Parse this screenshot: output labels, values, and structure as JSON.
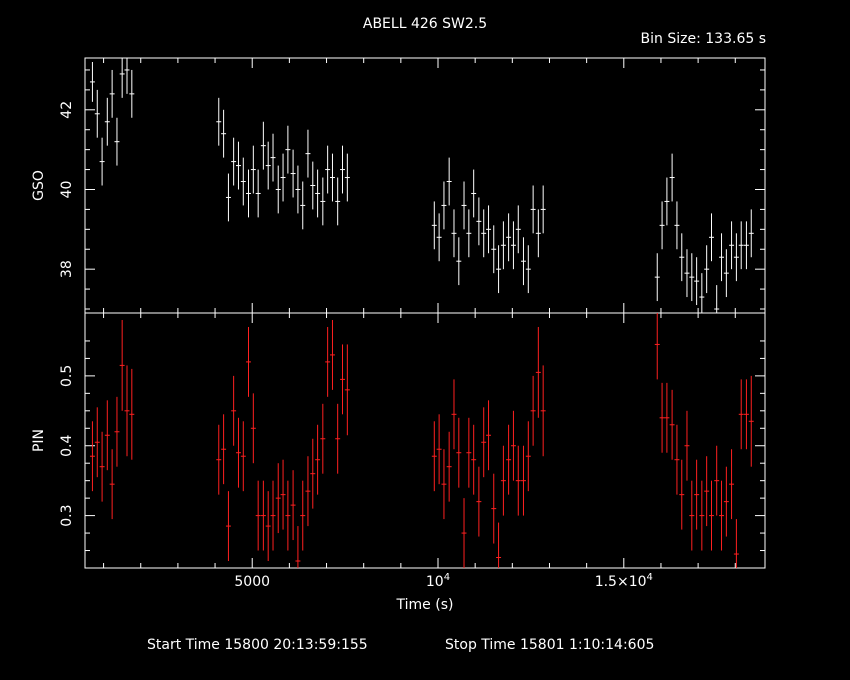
{
  "header": {
    "title": "ABELL 426 SW2.5",
    "bin_size": "Bin Size: 133.65 s"
  },
  "footer": {
    "start_time": "Start Time 15800 20:13:59:155",
    "stop_time": "Stop Time 15801  1:10:14:605"
  },
  "colors": {
    "background": "#000000",
    "axes": "#ffffff",
    "gso": "#ffffff",
    "pin": "#ff2020"
  },
  "chart_data": [
    {
      "type": "scatter",
      "panel": "top",
      "title": "ABELL 426 SW2.5",
      "xlabel": "",
      "ylabel": "GSO",
      "xlim": [
        500,
        18800
      ],
      "ylim": [
        36.9,
        43.3
      ],
      "yticks": [
        "38",
        "40",
        "42"
      ],
      "series": [
        {
          "x": [
            700,
            830,
            960,
            1100,
            1230,
            1360,
            1500,
            1630,
            1760,
            4100,
            4230,
            4360,
            4500,
            4630,
            4760,
            4900,
            5030,
            5160,
            5300,
            5430,
            5560,
            5700,
            5830,
            5960,
            6100,
            6230,
            6360,
            6500,
            6630,
            6760,
            6900,
            7030,
            7160,
            7300,
            7430,
            7560,
            9900,
            10030,
            10160,
            10300,
            10430,
            10560,
            10700,
            10830,
            10960,
            11100,
            11230,
            11360,
            11500,
            11630,
            11760,
            11900,
            12030,
            12160,
            12300,
            12430,
            12560,
            12700,
            12830,
            15900,
            16030,
            16160,
            16300,
            16430,
            16560,
            16700,
            16830,
            16960,
            17100,
            17230,
            17360,
            17500,
            17630,
            17760,
            17900,
            18030,
            18160,
            18300,
            18430
          ],
          "y": [
            42.7,
            41.9,
            40.7,
            41.7,
            42.4,
            41.2,
            42.9,
            43.0,
            42.4,
            41.7,
            41.4,
            39.8,
            40.7,
            40.6,
            40.2,
            39.9,
            40.5,
            39.9,
            41.1,
            40.6,
            40.8,
            40.0,
            40.3,
            41.0,
            40.4,
            40.0,
            39.6,
            40.9,
            40.1,
            39.9,
            39.7,
            40.5,
            40.3,
            39.7,
            40.5,
            40.3,
            39.1,
            38.8,
            39.6,
            40.2,
            38.9,
            38.2,
            39.6,
            38.9,
            39.9,
            39.2,
            38.9,
            39.0,
            38.5,
            38.0,
            38.6,
            38.8,
            38.6,
            39.0,
            38.2,
            38.0,
            39.5,
            38.9,
            39.5,
            37.8,
            39.1,
            39.7,
            40.3,
            39.1,
            38.3,
            37.9,
            37.8,
            37.7,
            37.3,
            38.0,
            38.8,
            37.0,
            38.3,
            37.9,
            38.6,
            38.3,
            38.6,
            38.6,
            38.9
          ],
          "err": [
            0.5,
            0.6,
            0.6,
            0.6,
            0.6,
            0.6,
            0.6,
            0.6,
            0.6,
            0.6,
            0.6,
            0.6,
            0.6,
            0.6,
            0.6,
            0.6,
            0.6,
            0.6,
            0.6,
            0.6,
            0.6,
            0.6,
            0.6,
            0.6,
            0.6,
            0.6,
            0.6,
            0.6,
            0.6,
            0.6,
            0.6,
            0.6,
            0.6,
            0.6,
            0.6,
            0.6,
            0.6,
            0.6,
            0.6,
            0.6,
            0.6,
            0.6,
            0.6,
            0.6,
            0.6,
            0.6,
            0.6,
            0.6,
            0.6,
            0.6,
            0.6,
            0.6,
            0.6,
            0.6,
            0.6,
            0.6,
            0.6,
            0.6,
            0.6,
            0.6,
            0.6,
            0.6,
            0.6,
            0.6,
            0.6,
            0.6,
            0.6,
            0.6,
            0.6,
            0.6,
            0.6,
            0.6,
            0.6,
            0.6,
            0.6,
            0.6,
            0.6,
            0.6,
            0.6
          ]
        }
      ]
    },
    {
      "type": "scatter",
      "panel": "bottom",
      "xlabel": "Time (s)",
      "ylabel": "PIN",
      "xlim": [
        500,
        18800
      ],
      "ylim": [
        0.225,
        0.59
      ],
      "xticks": [
        "5000",
        "10⁴",
        "1.5×10⁴"
      ],
      "xtick_values": [
        5000,
        10000,
        15000
      ],
      "yticks": [
        "0.3",
        "0.4",
        "0.5"
      ],
      "series": [
        {
          "x": [
            700,
            830,
            960,
            1100,
            1230,
            1360,
            1500,
            1630,
            1760,
            4100,
            4230,
            4360,
            4500,
            4630,
            4760,
            4900,
            5030,
            5160,
            5300,
            5430,
            5560,
            5700,
            5830,
            5960,
            6100,
            6230,
            6360,
            6500,
            6630,
            6760,
            6900,
            7030,
            7160,
            7300,
            7430,
            7560,
            9900,
            10030,
            10160,
            10300,
            10430,
            10560,
            10700,
            10830,
            10960,
            11100,
            11230,
            11360,
            11500,
            11630,
            11760,
            11900,
            12030,
            12160,
            12300,
            12430,
            12560,
            12700,
            12830,
            15900,
            16030,
            16160,
            16300,
            16430,
            16560,
            16700,
            16830,
            16960,
            17100,
            17230,
            17360,
            17500,
            17630,
            17760,
            17900,
            18030,
            18160,
            18300,
            18430
          ],
          "y": [
            0.385,
            0.405,
            0.37,
            0.415,
            0.345,
            0.42,
            0.515,
            0.45,
            0.445,
            0.38,
            0.395,
            0.285,
            0.45,
            0.39,
            0.385,
            0.52,
            0.425,
            0.3,
            0.3,
            0.285,
            0.3,
            0.325,
            0.33,
            0.3,
            0.315,
            0.235,
            0.3,
            0.335,
            0.36,
            0.38,
            0.41,
            0.52,
            0.53,
            0.41,
            0.495,
            0.48,
            0.385,
            0.395,
            0.345,
            0.37,
            0.445,
            0.39,
            0.275,
            0.39,
            0.38,
            0.32,
            0.405,
            0.415,
            0.31,
            0.24,
            0.35,
            0.38,
            0.4,
            0.35,
            0.35,
            0.385,
            0.45,
            0.505,
            0.45,
            0.545,
            0.44,
            0.44,
            0.43,
            0.38,
            0.33,
            0.4,
            0.3,
            0.33,
            0.3,
            0.335,
            0.3,
            0.35,
            0.3,
            0.32,
            0.345,
            0.245,
            0.445,
            0.445,
            0.435
          ],
          "err": [
            0.05,
            0.05,
            0.05,
            0.05,
            0.05,
            0.05,
            0.065,
            0.065,
            0.065,
            0.05,
            0.05,
            0.05,
            0.05,
            0.05,
            0.05,
            0.05,
            0.05,
            0.05,
            0.05,
            0.05,
            0.05,
            0.05,
            0.05,
            0.05,
            0.05,
            0.05,
            0.05,
            0.05,
            0.05,
            0.05,
            0.05,
            0.05,
            0.05,
            0.05,
            0.05,
            0.065,
            0.05,
            0.05,
            0.05,
            0.05,
            0.05,
            0.05,
            0.05,
            0.05,
            0.05,
            0.05,
            0.05,
            0.05,
            0.05,
            0.05,
            0.05,
            0.05,
            0.05,
            0.05,
            0.05,
            0.05,
            0.05,
            0.065,
            0.065,
            0.05,
            0.05,
            0.05,
            0.05,
            0.05,
            0.05,
            0.05,
            0.05,
            0.05,
            0.05,
            0.05,
            0.05,
            0.05,
            0.05,
            0.05,
            0.05,
            0.05,
            0.05,
            0.05,
            0.065
          ]
        }
      ]
    }
  ]
}
